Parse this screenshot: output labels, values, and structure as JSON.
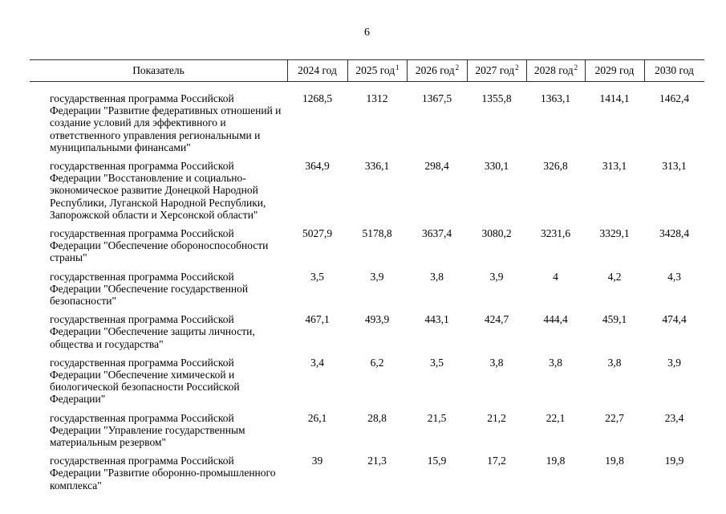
{
  "page": {
    "number": "6"
  },
  "table": {
    "columns": [
      {
        "label": "Показатель",
        "sup": ""
      },
      {
        "label": "2024 год",
        "sup": ""
      },
      {
        "label": "2025 год",
        "sup": "1"
      },
      {
        "label": "2026 год",
        "sup": "2"
      },
      {
        "label": "2027 год",
        "sup": "2"
      },
      {
        "label": "2028 год",
        "sup": "2"
      },
      {
        "label": "2029 год",
        "sup": ""
      },
      {
        "label": "2030 год",
        "sup": ""
      }
    ],
    "rows": [
      {
        "label": "государственная программа Российской Федерации \"Развитие федеративных отношений и создание условий для эффективного и ответственного управления региональными и муниципальными финансами\"",
        "values": [
          "1268,5",
          "1312",
          "1367,5",
          "1355,8",
          "1363,1",
          "1414,1",
          "1462,4"
        ]
      },
      {
        "label": "государственная программа Российской Федерации \"Восстановление и социально-экономическое развитие Донецкой Народной Республики, Луганской Народной Республики, Запорожской области и Херсонской области\"",
        "values": [
          "364,9",
          "336,1",
          "298,4",
          "330,1",
          "326,8",
          "313,1",
          "313,1"
        ]
      },
      {
        "label": "государственная программа Российской Федерации \"Обеспечение обороноспособности страны\"",
        "values": [
          "5027,9",
          "5178,8",
          "3637,4",
          "3080,2",
          "3231,6",
          "3329,1",
          "3428,4"
        ]
      },
      {
        "label": "государственная программа Российской Федерации \"Обеспечение государственной безопасности\"",
        "values": [
          "3,5",
          "3,9",
          "3,8",
          "3,9",
          "4",
          "4,2",
          "4,3"
        ]
      },
      {
        "label": "государственная программа Российской Федерации \"Обеспечение защиты личности, общества и государства\"",
        "values": [
          "467,1",
          "493,9",
          "443,1",
          "424,7",
          "444,4",
          "459,1",
          "474,4"
        ]
      },
      {
        "label": "государственная программа Российской Федерации \"Обеспечение химической и биологической безопасности Российской Федерации\"",
        "values": [
          "3,4",
          "6,2",
          "3,5",
          "3,8",
          "3,8",
          "3,8",
          "3,9"
        ]
      },
      {
        "label": "государственная программа Российской Федерации \"Управление государственным материальным резервом\"",
        "values": [
          "26,1",
          "28,8",
          "21,5",
          "21,2",
          "22,1",
          "22,7",
          "23,4"
        ]
      },
      {
        "label": "государственная программа Российской Федерации \"Развитие оборонно-промышленного комплекса\"",
        "values": [
          "39",
          "21,3",
          "15,9",
          "17,2",
          "19,8",
          "19,8",
          "19,9"
        ]
      }
    ]
  }
}
